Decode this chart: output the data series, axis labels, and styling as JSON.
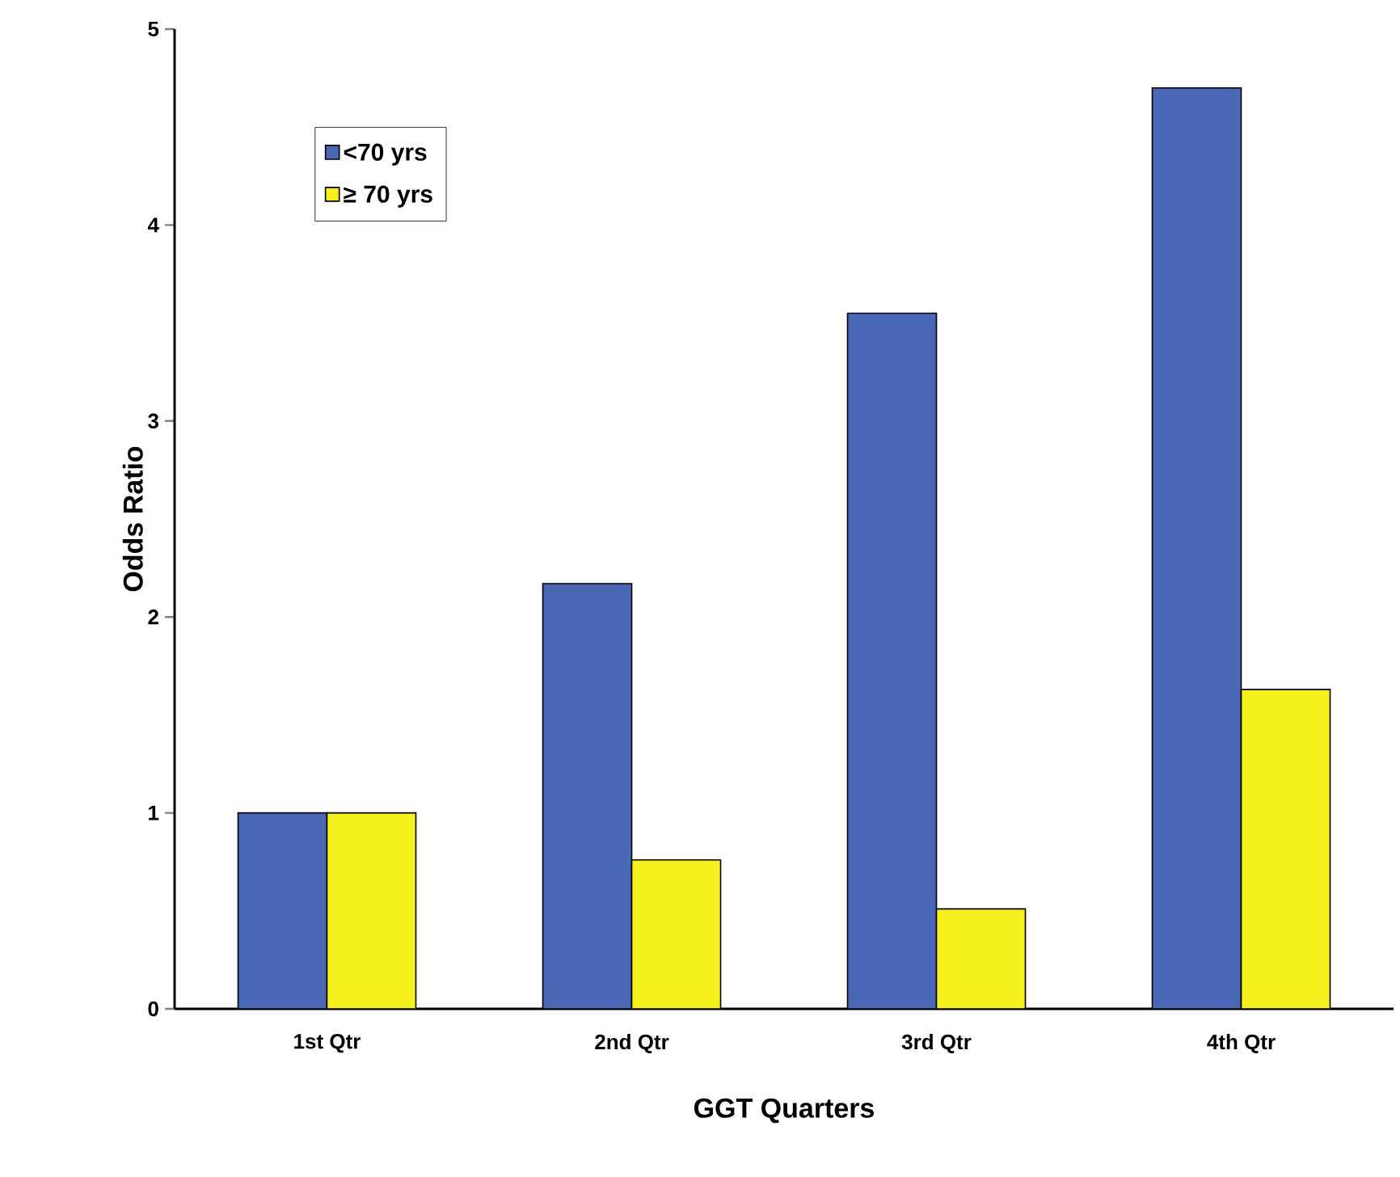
{
  "chart_data": {
    "type": "bar",
    "xlabel": "GGT Quarters",
    "ylabel": "Odds Ratio",
    "categories": [
      "1st Qtr",
      "2nd Qtr",
      "3rd Qtr",
      "4th Qtr"
    ],
    "series": [
      {
        "name": "<70 yrs",
        "color": "#4a67b5",
        "values": [
          1.0,
          2.17,
          3.55,
          4.7
        ]
      },
      {
        "name": "≥ 70 yrs",
        "color": "#f5f01e",
        "values": [
          1.0,
          0.76,
          0.51,
          1.63
        ]
      }
    ],
    "ylim": [
      0,
      5
    ],
    "yticks": [
      0,
      1,
      2,
      3,
      4,
      5
    ],
    "grid": false,
    "legend": "top left"
  }
}
